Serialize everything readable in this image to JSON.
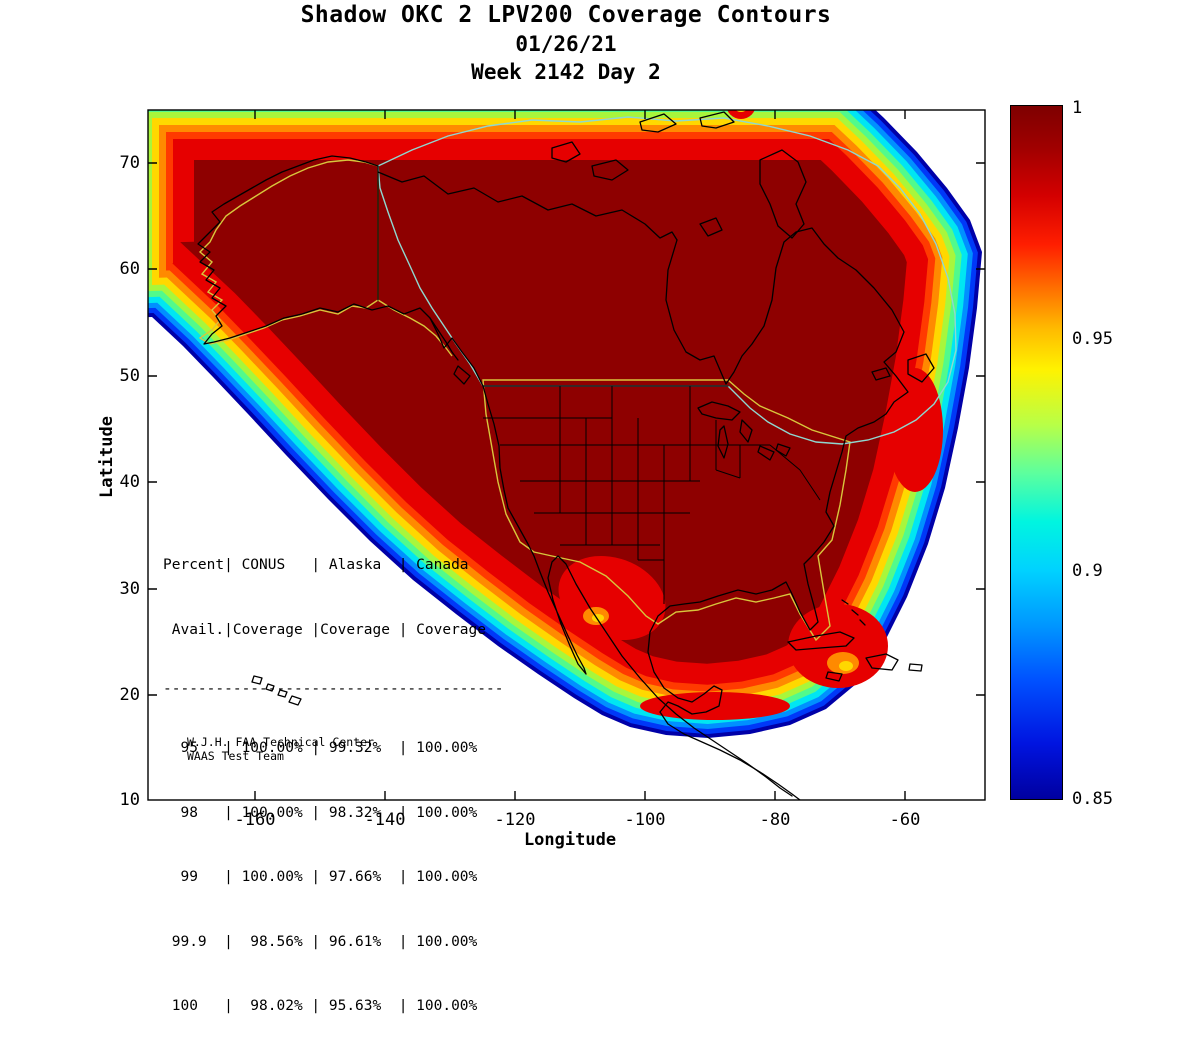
{
  "title": {
    "line1": "Shadow OKC 2 LPV200 Coverage Contours",
    "line2": "01/26/21",
    "line3": "Week 2142 Day 2"
  },
  "axes": {
    "x_label": "Longitude",
    "y_label": "Latitude",
    "x_ticks": [
      "-160",
      "-140",
      "-120",
      "-100",
      "-80",
      "-60"
    ],
    "y_ticks": [
      "70",
      "60",
      "50",
      "40",
      "30",
      "20",
      "10"
    ]
  },
  "colorbar": {
    "tick_labels": [
      "1",
      "0.95",
      "0.9",
      "0.85"
    ]
  },
  "coverage_table": {
    "lines": [
      "Percent| CONUS   | Alaska  | Canada",
      " Avail.|Coverage |Coverage | Coverage",
      "---------------------------------------",
      "  95   | 100.00% | 99.32%  | 100.00%",
      "  98   | 100.00% | 98.32%  | 100.00%",
      "  99   | 100.00% | 97.66%  | 100.00%",
      " 99.9  |  98.56% | 96.61%  | 100.00%",
      " 100   |  98.02% | 95.63%  | 100.00%"
    ]
  },
  "credit": {
    "line1": "W.J.H. FAA Technical Center",
    "line2": "WAAS Test Team"
  },
  "chart_data": {
    "type": "heatmap",
    "subtype": "filled-contour-coverage-map",
    "title": "Shadow OKC 2 LPV200 Coverage Contours",
    "date": "01/26/21",
    "gps_week_day": "Week 2142 Day 2",
    "xlabel": "Longitude",
    "ylabel": "Latitude",
    "xlim": [
      -177,
      -47
    ],
    "ylim": [
      10,
      75
    ],
    "x_ticks": [
      -160,
      -140,
      -120,
      -100,
      -80,
      -60
    ],
    "y_ticks": [
      10,
      20,
      30,
      40,
      50,
      60,
      70
    ],
    "colormap": "jet",
    "colorbar": {
      "min": 0.85,
      "max": 1.0,
      "ticks": [
        0.85,
        0.9,
        0.95,
        1
      ]
    },
    "value_shown": "LPV200 availability",
    "interior_plateau_value": 1.0,
    "regions_outlined": [
      "CONUS",
      "Alaska",
      "Canada"
    ],
    "coverage_table": {
      "columns": [
        "Percent Avail.",
        "CONUS Coverage",
        "Alaska Coverage",
        "Canada Coverage"
      ],
      "rows": [
        [
          "95",
          "100.00%",
          "99.32%",
          "100.00%"
        ],
        [
          "98",
          "100.00%",
          "98.32%",
          "100.00%"
        ],
        [
          "99",
          "100.00%",
          "97.66%",
          "100.00%"
        ],
        [
          "99.9",
          "98.56%",
          "96.61%",
          "100.00%"
        ],
        [
          "100",
          "98.02%",
          "95.63%",
          "100.00%"
        ]
      ]
    }
  }
}
